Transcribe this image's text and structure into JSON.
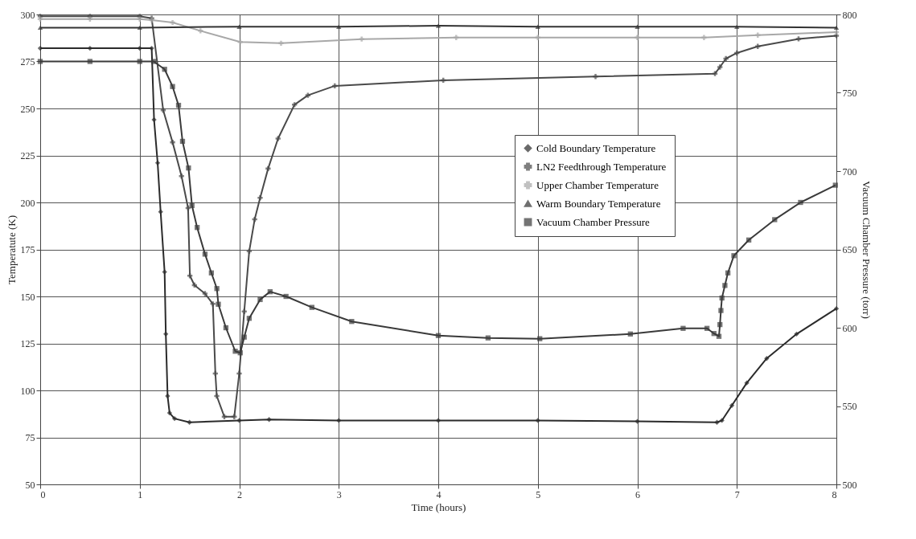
{
  "chart_data": {
    "type": "line",
    "xlabel": "Time (hours)",
    "ylabel": "Temperatute (K)",
    "y2label": "Vacuum Chamber Pressure (torr)",
    "xlim": [
      0,
      8
    ],
    "xticks": [
      0,
      1,
      2,
      3,
      4,
      5,
      6,
      7,
      8
    ],
    "ylim": [
      50,
      300
    ],
    "yticks": [
      50,
      75,
      100,
      125,
      150,
      175,
      200,
      225,
      250,
      275,
      300
    ],
    "y2lim": [
      500,
      800
    ],
    "y2ticks": [
      500,
      550,
      600,
      650,
      700,
      750,
      800
    ],
    "grid": true,
    "legend": "right",
    "line_style": "solid",
    "series": [
      {
        "name": "Cold Boundary Temperature",
        "color": "#2b2b2b",
        "marker": "diamond",
        "x": [
          0,
          0.5,
          1,
          1.12,
          1.144,
          1.18,
          1.21,
          1.25,
          1.262,
          1.28,
          1.3,
          1.35,
          1.5,
          2,
          2.3,
          3,
          4,
          5,
          6,
          6.8,
          6.85,
          6.95,
          7.1,
          7.3,
          7.6,
          8
        ],
        "values": [
          282,
          282,
          282,
          282,
          244,
          221,
          195,
          163,
          130,
          97,
          88,
          85,
          83,
          84,
          84.5,
          84,
          84,
          84,
          83.5,
          83,
          84,
          92,
          104,
          117,
          130,
          143.5
        ]
      },
      {
        "name": "LN2 Feedthrough Temperature",
        "color": "#4a4a4a",
        "marker": "cross",
        "x": [
          0,
          0.5,
          1,
          1.12,
          1.236,
          1.33,
          1.42,
          1.486,
          1.504,
          1.55,
          1.656,
          1.735,
          1.76,
          1.774,
          1.85,
          1.95,
          2.0,
          2.05,
          2.1,
          2.155,
          2.21,
          2.29,
          2.39,
          2.555,
          2.69,
          2.96,
          4.05,
          5.58,
          6.78,
          6.83,
          6.89,
          7.0,
          7.21,
          7.62,
          8
        ],
        "values": [
          299,
          299,
          299,
          298,
          249,
          232,
          214,
          197,
          161,
          156,
          151.5,
          146,
          109,
          97,
          86,
          86,
          109,
          142,
          174,
          191,
          202.5,
          218,
          234,
          252,
          257,
          262,
          265,
          267,
          268.5,
          272,
          276.5,
          279.5,
          283,
          287,
          288.7
        ]
      },
      {
        "name": "Upper Chamber Temperature",
        "color": "#a8a8a8",
        "marker": "cross",
        "x": [
          0,
          0.5,
          1,
          1.12,
          1.33,
          1.61,
          2.01,
          2.42,
          3.23,
          4.18,
          5,
          6,
          6.67,
          7.21,
          8
        ],
        "values": [
          297.5,
          297.5,
          297.5,
          297,
          295.7,
          291.3,
          285.4,
          284.7,
          286.9,
          287.7,
          287.7,
          287.7,
          287.7,
          289,
          290.6
        ]
      },
      {
        "name": "Warm Boundary Temperature",
        "color": "#333333",
        "marker": "triangle",
        "x": [
          0,
          1,
          2,
          3,
          4,
          5,
          6,
          7,
          8
        ],
        "values": [
          293,
          293,
          293.5,
          293.5,
          294,
          293.5,
          293.5,
          293.5,
          293
        ]
      },
      {
        "name": "Vacuum Chamber Pressure",
        "color": "#3a3a3a",
        "marker": "square",
        "axis": "y2",
        "x": [
          0,
          0.5,
          1,
          1.14,
          1.25,
          1.33,
          1.39,
          1.43,
          1.49,
          1.525,
          1.577,
          1.656,
          1.72,
          1.775,
          1.79,
          1.866,
          1.96,
          2.01,
          2.05,
          2.1,
          2.21,
          2.31,
          2.47,
          2.73,
          3.13,
          4,
          4.5,
          5.02,
          5.93,
          6.46,
          6.7,
          6.77,
          6.82,
          6.83,
          6.84,
          6.85,
          6.88,
          6.91,
          6.97,
          7.12,
          7.38,
          7.64,
          7.99
        ],
        "values": [
          770,
          770,
          770,
          770,
          765,
          754,
          742,
          719,
          702,
          678,
          664,
          647,
          635,
          625,
          615,
          600,
          585,
          584,
          594,
          606,
          618,
          623,
          620,
          613,
          604,
          595,
          593.5,
          593,
          596,
          599.6,
          599.6,
          596.3,
          594.5,
          602,
          611,
          619,
          627,
          635,
          646,
          656,
          669,
          680,
          691
        ]
      }
    ]
  }
}
